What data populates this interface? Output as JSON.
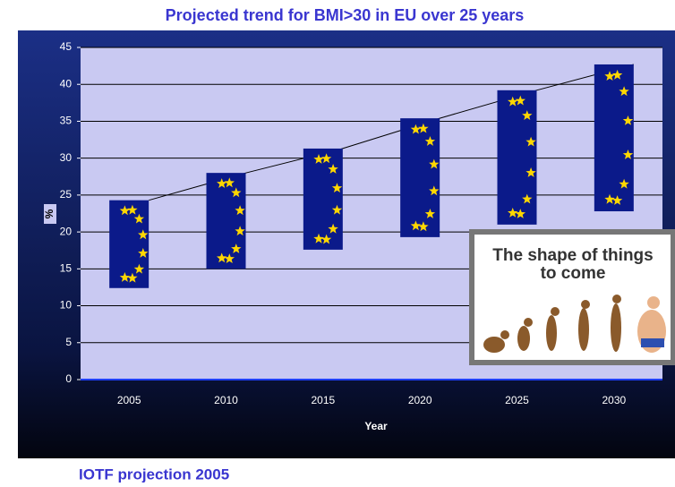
{
  "chart_data": {
    "type": "range",
    "title": "Projected trend for BMI>30 in EU over 25 years",
    "x_label": "Year",
    "y_label": "%",
    "categories": [
      "2005",
      "2010",
      "2015",
      "2020",
      "2025",
      "2030"
    ],
    "low": [
      12.4,
      15.0,
      17.6,
      19.3,
      21.0,
      22.8
    ],
    "high": [
      24.3,
      28.0,
      31.3,
      35.4,
      39.2,
      42.7
    ],
    "color": "#0b1a8a",
    "ylim": [
      0,
      45
    ],
    "yticks": [
      0,
      5,
      10,
      15,
      20,
      25,
      30,
      35,
      40,
      45
    ],
    "grid": true,
    "footer": "IOTF projection 2005",
    "inset_lines": [
      "The shape of things",
      "to come"
    ]
  }
}
